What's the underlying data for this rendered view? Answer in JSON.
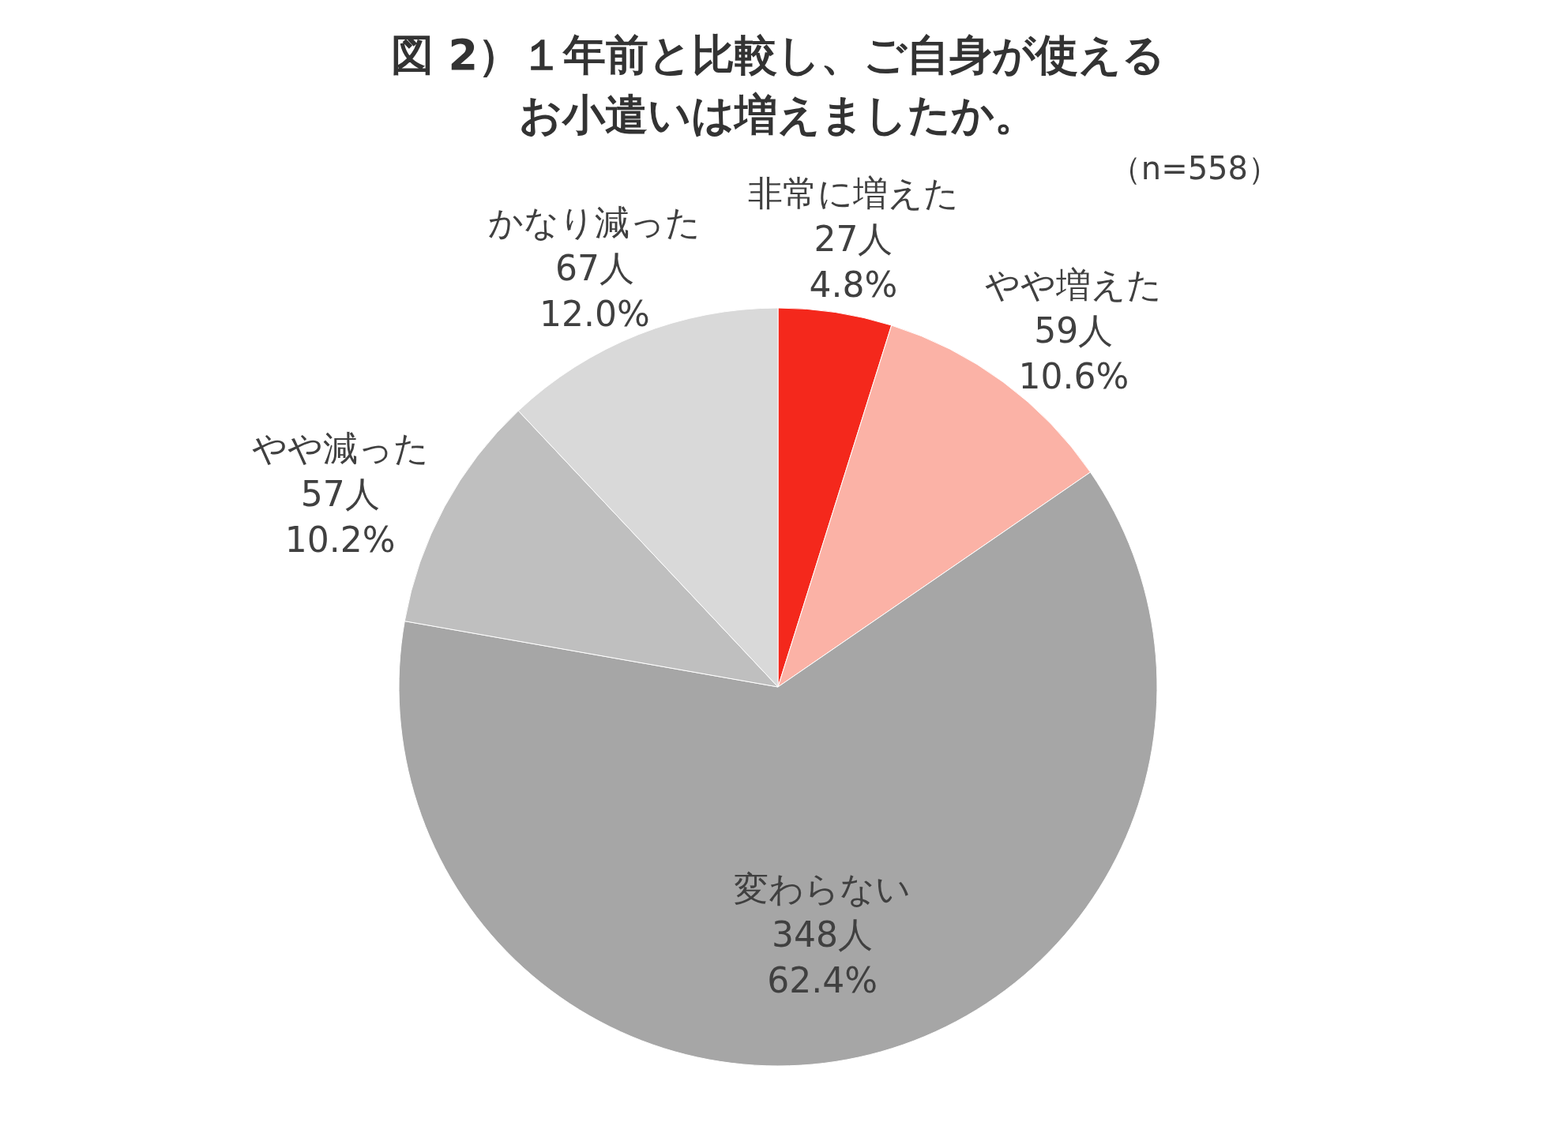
{
  "chart_data": {
    "type": "pie",
    "title": "図 2）１年前と比較し、ご自身が使えるお小遣いは増えましたか。",
    "categories": [
      "非常に増えた",
      "やや増えた",
      "変わらない",
      "やや減った",
      "かなり減った"
    ],
    "values": [
      27,
      59,
      348,
      57,
      67
    ],
    "value_labels": [
      "27人\n4.8%",
      "59人\n10.6%",
      "348人\n62.4%",
      "57人\n10.2%",
      "67人\n12.0%"
    ],
    "colors": [
      "#f4281c",
      "#fbb2a6",
      "#a6a6a6",
      "#bfbfbf",
      "#d9d9d9"
    ],
    "annotations": [
      "（n=558）"
    ],
    "legend": false
  }
}
